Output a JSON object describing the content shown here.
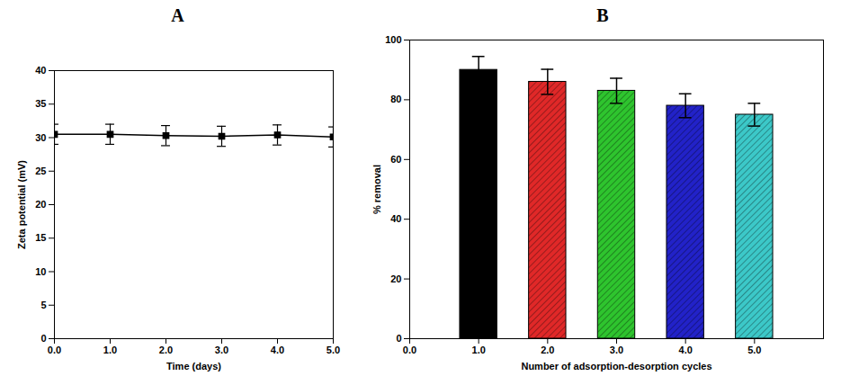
{
  "chart_data": [
    {
      "type": "line",
      "title": "A",
      "x": [
        0,
        1,
        2,
        3,
        4,
        5
      ],
      "values": [
        30.5,
        30.5,
        30.3,
        30.2,
        30.4,
        30.1
      ],
      "errors": [
        1.5,
        1.5,
        1.5,
        1.5,
        1.5,
        1.5
      ],
      "x_label": "Time (days)",
      "y_label": "Zeta potential (mV)",
      "xlim": [
        0,
        5
      ],
      "xticks": [
        0,
        1,
        2,
        3,
        4,
        5
      ],
      "ylim": [
        0,
        40
      ],
      "yticks": [
        0,
        5,
        10,
        15,
        20,
        25,
        30,
        35,
        40
      ],
      "color": "#000000",
      "marker": "square"
    },
    {
      "type": "bar",
      "title": "B",
      "x": [
        1,
        2,
        3,
        4,
        5
      ],
      "values": [
        90,
        86,
        83,
        78,
        75
      ],
      "errors": [
        4.5,
        4.2,
        4.2,
        4.0,
        3.8
      ],
      "colors": [
        "#000000",
        "#e02828",
        "#2ec42e",
        "#2222c8",
        "#3cc8c8"
      ],
      "x_label": "Number of adsorption-desorption cycles",
      "y_label": "% removal",
      "xlim": [
        0,
        6
      ],
      "xticks": [
        0,
        1,
        2,
        3,
        4,
        5
      ],
      "ylim": [
        0,
        100
      ],
      "yticks": [
        0,
        20,
        40,
        60,
        80,
        100
      ]
    }
  ]
}
